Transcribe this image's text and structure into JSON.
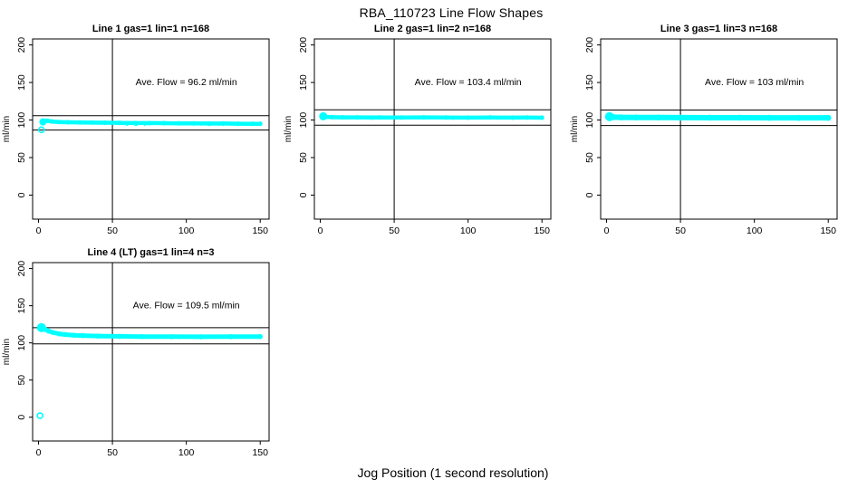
{
  "figure": {
    "title": "RBA_110723  Line Flow Shapes",
    "xlabel": "Jog Position (1 second resolution)",
    "background": "#ffffff",
    "point_color": "#00ffff",
    "line_color": "#000000"
  },
  "chart_data": [
    {
      "type": "scatter",
      "title": "Line 1 gas=1 lin=1 n=168",
      "ylabel": "ml/min",
      "annotation": "Ave. Flow =  96.2  ml/min",
      "ave_flow": 96.2,
      "n": 168,
      "xticks": [
        0,
        50,
        100,
        150
      ],
      "yticks": [
        0,
        50,
        100,
        150,
        200
      ],
      "xlim": [
        -4,
        156
      ],
      "ylim": [
        -32,
        208
      ],
      "vline_x": 50,
      "ref_lines": [
        105.8,
        86.6
      ],
      "band_width": 4.5,
      "start_radius": 4,
      "band": [
        [
          3,
          97.5
        ],
        [
          4,
          98.8
        ],
        [
          6,
          99
        ],
        [
          9,
          98
        ],
        [
          14,
          97.3
        ],
        [
          20,
          97
        ],
        [
          28,
          96.8
        ],
        [
          36,
          96.6
        ],
        [
          45,
          96.4
        ],
        [
          55,
          96.2
        ],
        [
          65,
          95.9
        ],
        [
          75,
          95.9
        ],
        [
          85,
          95.8
        ],
        [
          95,
          95.6
        ],
        [
          105,
          95.5
        ],
        [
          115,
          95.3
        ],
        [
          125,
          95.3
        ],
        [
          135,
          95.1
        ],
        [
          145,
          95
        ],
        [
          150,
          95
        ]
      ],
      "specks": [
        [
          60,
          94
        ],
        [
          66,
          93.8
        ],
        [
          72,
          94
        ],
        [
          110,
          94.2
        ],
        [
          116,
          93.8
        ],
        [
          122,
          94
        ],
        [
          128,
          94.2
        ]
      ],
      "outliers": [
        [
          2,
          87
        ]
      ]
    },
    {
      "type": "scatter",
      "title": "Line 2 gas=1 lin=2 n=168",
      "ylabel": "ml/min",
      "annotation": "Ave. Flow =  103.4  ml/min",
      "ave_flow": 103.4,
      "n": 168,
      "xticks": [
        0,
        50,
        100,
        150
      ],
      "yticks": [
        0,
        50,
        100,
        150,
        200
      ],
      "xlim": [
        -4,
        156
      ],
      "ylim": [
        -32,
        208
      ],
      "vline_x": 50,
      "ref_lines": [
        113.7,
        93.1
      ],
      "band_width": 4.5,
      "start_radius": 4.5,
      "band": [
        [
          2,
          105
        ],
        [
          4,
          104.2
        ],
        [
          8,
          103.8
        ],
        [
          15,
          103.6
        ],
        [
          25,
          103.5
        ],
        [
          40,
          103.4
        ],
        [
          55,
          103.3
        ],
        [
          70,
          103.5
        ],
        [
          85,
          103.3
        ],
        [
          100,
          103.2
        ],
        [
          115,
          103.4
        ],
        [
          130,
          103.2
        ],
        [
          140,
          103.3
        ],
        [
          150,
          103.1
        ]
      ],
      "specks": [
        [
          35,
          101.8
        ],
        [
          90,
          101.9
        ],
        [
          120,
          102
        ]
      ],
      "outliers": []
    },
    {
      "type": "scatter",
      "title": "Line 3 gas=1 lin=3 n=168",
      "ylabel": "ml/min",
      "annotation": "Ave. Flow =  103  ml/min",
      "ave_flow": 103,
      "n": 168,
      "xticks": [
        0,
        50,
        100,
        150
      ],
      "yticks": [
        0,
        50,
        100,
        150,
        200
      ],
      "xlim": [
        -4,
        156
      ],
      "ylim": [
        -32,
        208
      ],
      "vline_x": 50,
      "ref_lines": [
        113.3,
        92.7
      ],
      "band_width": 6,
      "start_radius": 5,
      "band": [
        [
          2,
          104.5
        ],
        [
          5,
          103.8
        ],
        [
          10,
          103.5
        ],
        [
          20,
          103.4
        ],
        [
          35,
          103.3
        ],
        [
          50,
          103.2
        ],
        [
          70,
          103.1
        ],
        [
          90,
          103.1
        ],
        [
          110,
          103
        ],
        [
          130,
          102.9
        ],
        [
          150,
          102.9
        ]
      ],
      "specks": [],
      "outliers": []
    },
    {
      "type": "scatter",
      "title": "Line 4 (LT) gas=1 lin=4 n=3",
      "ylabel": "ml/min",
      "annotation": "Ave. Flow =  109.5  ml/min",
      "ave_flow": 109.5,
      "n": 3,
      "xticks": [
        0,
        50,
        100,
        150
      ],
      "yticks": [
        0,
        50,
        100,
        150,
        200
      ],
      "xlim": [
        -4,
        156
      ],
      "ylim": [
        -32,
        208
      ],
      "vline_x": 50,
      "ref_lines": [
        120.5,
        98.6
      ],
      "band_width": 5,
      "start_radius": 5,
      "band": [
        [
          2,
          120.5
        ],
        [
          3,
          119.5
        ],
        [
          5,
          117.5
        ],
        [
          7,
          115.8
        ],
        [
          10,
          113.8
        ],
        [
          14,
          112.2
        ],
        [
          18,
          111.2
        ],
        [
          24,
          110.3
        ],
        [
          30,
          109.8
        ],
        [
          40,
          109.2
        ],
        [
          55,
          108.8
        ],
        [
          70,
          108.5
        ],
        [
          90,
          108.3
        ],
        [
          110,
          108.2
        ],
        [
          130,
          108.3
        ],
        [
          150,
          108.5
        ]
      ],
      "specks": [
        [
          55,
          107
        ],
        [
          75,
          107
        ],
        [
          95,
          106.8
        ]
      ],
      "outliers": [
        [
          1,
          2
        ]
      ]
    }
  ]
}
